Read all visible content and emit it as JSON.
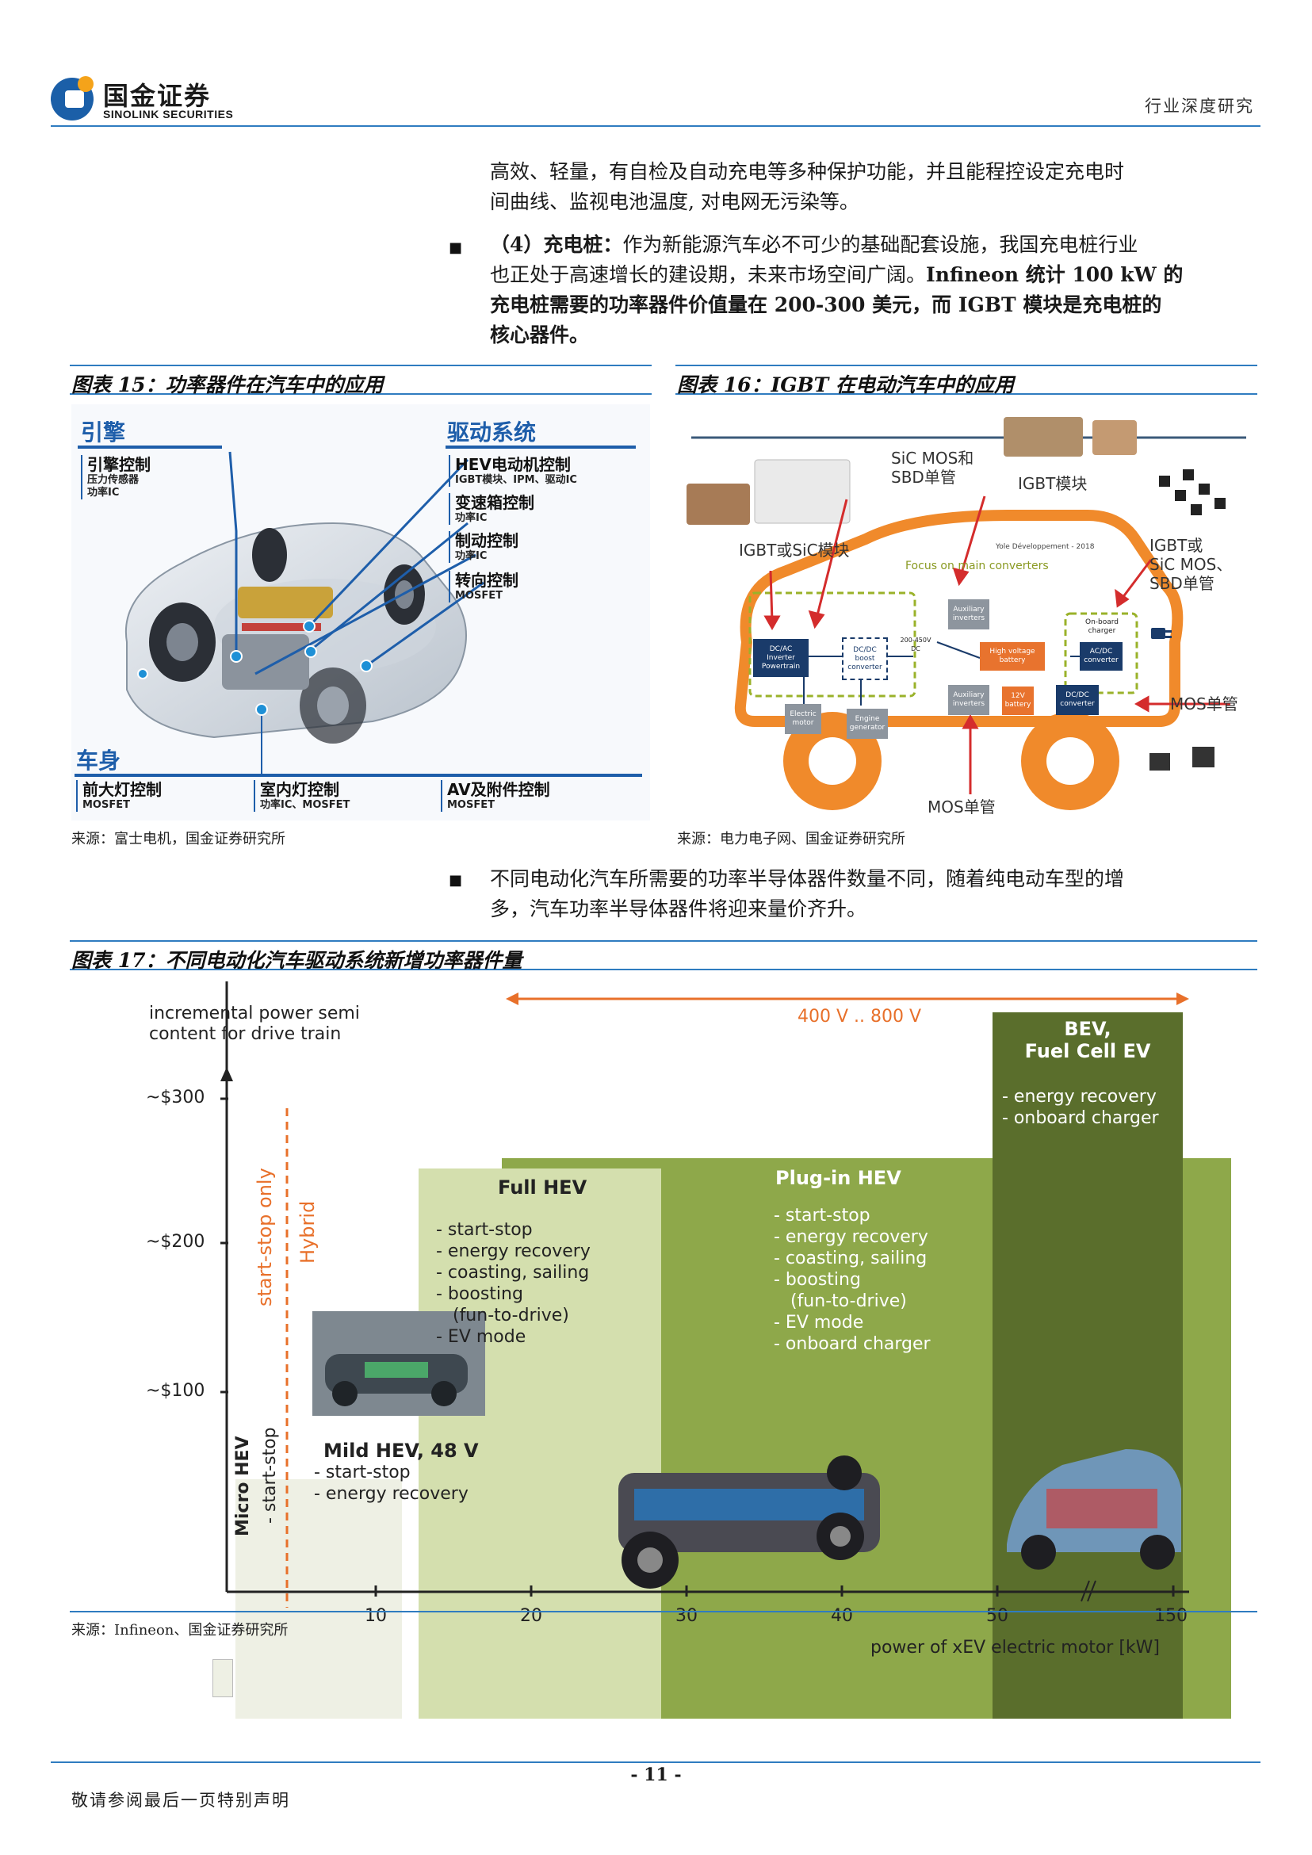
{
  "header": {
    "logo_cn": "国金证券",
    "logo_en": "SINOLINK SECURITIES",
    "report_type": "行业深度研究"
  },
  "intro": {
    "line1": "高效、轻量，有自检及自动充电等多种保护功能，并且能程控设定充电时",
    "line2": "间曲线、监视电池温度, 对电网无污染等。"
  },
  "point4": {
    "label": "（4）充电桩：",
    "text_a": "作为新能源汽车必不可少的基础配套设施，我国充电桩行业",
    "text_b": "也正处于高速增长的建设期，未来市场空间广阔。",
    "bold_a": "Infineon 统计 100 kW 的",
    "bold_b": "充电桩需要的功率器件价值量在 200-300 美元，而 IGBT 模块是充电桩的",
    "bold_c": "核心器件。"
  },
  "fig15": {
    "caption": "图表 15：功率器件在汽车中的应用",
    "source": "来源：富士电机，国金证券研究所",
    "engine_title": "引擎",
    "drive_title": "驱动系统",
    "body_title": "车身",
    "items": [
      {
        "h": "引擎控制",
        "s": "压力传感器\n功率IC"
      },
      {
        "h": "HEV电动机控制",
        "s": "IGBT模块、IPM、驱动IC"
      },
      {
        "h": "变速箱控制",
        "s": "功率IC"
      },
      {
        "h": "制动控制",
        "s": "功率IC"
      },
      {
        "h": "转向控制",
        "s": "MOSFET"
      },
      {
        "h": "前大灯控制",
        "s": "MOSFET"
      },
      {
        "h": "室内灯控制",
        "s": "功率IC、MOSFET"
      },
      {
        "h": "AV及附件控制",
        "s": "MOSFET"
      }
    ]
  },
  "fig16": {
    "caption": "图表 16：IGBT 在电动汽车中的应用",
    "source": "来源：电力电子网、国金证券研究所",
    "lbl_sic_sbd": "SiC MOS和\nSBD单管",
    "lbl_igbt_module": "IGBT模块",
    "lbl_igbt_sic_module": "IGBT或SiC模块",
    "lbl_right": "IGBT或\nSiC MOS、\nSBD单管",
    "lbl_mos_right": "MOS单管",
    "lbl_mos_bottom": "MOS单管",
    "focus": "Focus on main converters",
    "credit": "Yole Développement - 2018",
    "boxes": {
      "dcac": "DC/AC\nInverter\nPowertrain",
      "dcdc_boost": "DC/DC\nboost\nconverter",
      "aux_top": "Auxiliary\ninverters",
      "hv_battery": "High voltage\nbattery",
      "onboard": "On-board\ncharger",
      "acdc": "AC/DC\nconverter",
      "voltage": "200-450V\nDC",
      "motor": "Electric\nmotor",
      "engine": "Engine\ngenerator",
      "aux_bottom": "Auxiliary\ninverters",
      "battery12": "12V\nbattery",
      "dcdc_conv": "DC/DC\nconverter"
    }
  },
  "point5": {
    "line1": "不同电动化汽车所需要的功率半导体器件数量不同，随着纯电动车型的增",
    "line2": "多，汽车功率半导体器件将迎来量价齐升。"
  },
  "fig17": {
    "caption": "图表 17：不同电动化汽车驱动系统新增功率器件量",
    "source": "来源：Infineon、国金证券研究所",
    "y_title_1": "incremental power semi",
    "y_title_2": "content for drive train",
    "y_ticks": [
      "~$300",
      "~$200",
      "~$100"
    ],
    "x_ticks": [
      "10",
      "20",
      "30",
      "40",
      "50",
      "150"
    ],
    "x_title": "power of xEV electric motor [kW]",
    "voltage_range": "400 V .. 800 V",
    "start_stop_only": "start-stop only",
    "hybrid": "Hybrid",
    "micro_hev": "Micro HEV",
    "micro_sub": "- start-stop",
    "mild": {
      "title": "Mild HEV, 48 V",
      "items": [
        "-  start-stop",
        "-  energy recovery"
      ]
    },
    "full": {
      "title": "Full HEV",
      "items": [
        "-  start-stop",
        "-  energy recovery",
        "-  coasting, sailing",
        "-  boosting",
        "   (fun-to-drive)",
        "-  EV mode"
      ]
    },
    "plugin": {
      "title": "Plug-in HEV",
      "items": [
        "-  start-stop",
        "-  energy recovery",
        "-  coasting, sailing",
        "-  boosting",
        "   (fun-to-drive)",
        "-  EV mode",
        "-  onboard charger"
      ]
    },
    "bev": {
      "title1": "BEV,",
      "title2": "Fuel Cell EV",
      "items": [
        "-  energy recovery",
        "-  onboard charger"
      ]
    },
    "colors": {
      "micro": "#eef0e4",
      "mild": "#eceee0",
      "full": "#d4dfae",
      "plugin": "#8ea84a",
      "bev": "#5a6e2c",
      "orange": "#e8702a"
    }
  },
  "footer": {
    "page": "- 11 -",
    "note": "敬请参阅最后一页特别声明"
  }
}
